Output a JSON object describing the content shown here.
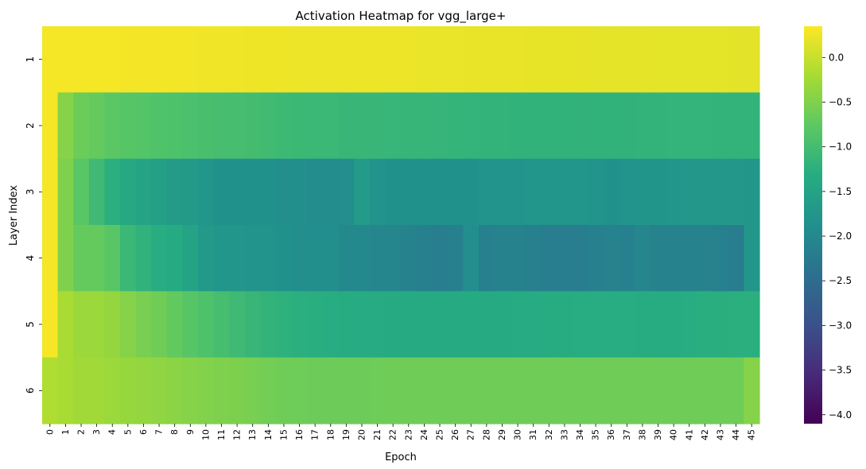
{
  "chart_data": {
    "type": "heatmap",
    "title": "Activation Heatmap for vgg_large+",
    "xlabel": "Epoch",
    "ylabel": "Layer Index",
    "x_categories": [
      "0",
      "1",
      "2",
      "3",
      "4",
      "5",
      "6",
      "7",
      "8",
      "9",
      "10",
      "11",
      "12",
      "13",
      "14",
      "15",
      "16",
      "17",
      "18",
      "19",
      "20",
      "21",
      "22",
      "23",
      "24",
      "25",
      "26",
      "27",
      "28",
      "29",
      "30",
      "31",
      "32",
      "33",
      "34",
      "35",
      "36",
      "37",
      "38",
      "39",
      "40",
      "41",
      "42",
      "43",
      "44",
      "45"
    ],
    "y_categories": [
      "1",
      "2",
      "3",
      "4",
      "5",
      "6"
    ],
    "colormap": "viridis",
    "vmin": -4.1,
    "vmax": 0.35,
    "colorbar_ticks": [
      "0.0",
      "−0.5",
      "−1.0",
      "−1.5",
      "−2.0",
      "−2.5",
      "−3.0",
      "−3.5",
      "−4.0"
    ],
    "colorbar_tick_values": [
      0.0,
      -0.5,
      -1.0,
      -1.5,
      -2.0,
      -2.5,
      -3.0,
      -3.5,
      -4.0
    ],
    "values": [
      [
        0.3,
        0.3,
        0.3,
        0.3,
        0.3,
        0.29,
        0.29,
        0.28,
        0.28,
        0.28,
        0.27,
        0.27,
        0.27,
        0.26,
        0.26,
        0.26,
        0.25,
        0.25,
        0.25,
        0.25,
        0.24,
        0.24,
        0.24,
        0.24,
        0.23,
        0.23,
        0.23,
        0.22,
        0.22,
        0.22,
        0.22,
        0.21,
        0.21,
        0.21,
        0.21,
        0.2,
        0.2,
        0.2,
        0.2,
        0.19,
        0.19,
        0.19,
        0.19,
        0.19,
        0.18,
        0.18
      ],
      [
        0.3,
        -0.45,
        -0.65,
        -0.7,
        -0.78,
        -0.82,
        -0.85,
        -0.88,
        -0.9,
        -0.92,
        -0.95,
        -0.97,
        -0.98,
        -1.0,
        -1.03,
        -1.06,
        -1.08,
        -1.1,
        -1.1,
        -1.12,
        -1.12,
        -1.12,
        -1.13,
        -1.14,
        -1.14,
        -1.15,
        -1.16,
        -1.17,
        -1.18,
        -1.18,
        -1.19,
        -1.19,
        -1.19,
        -1.19,
        -1.19,
        -1.19,
        -1.19,
        -1.19,
        -1.18,
        -1.18,
        -1.17,
        -1.17,
        -1.17,
        -1.18,
        -1.18,
        -1.18
      ],
      [
        0.3,
        -0.5,
        -0.8,
        -1.05,
        -1.25,
        -1.4,
        -1.5,
        -1.55,
        -1.65,
        -1.7,
        -1.75,
        -1.85,
        -1.85,
        -1.85,
        -1.85,
        -1.9,
        -1.9,
        -1.95,
        -1.95,
        -1.9,
        -1.65,
        -1.8,
        -1.85,
        -1.85,
        -1.85,
        -1.85,
        -1.85,
        -1.85,
        -1.8,
        -1.8,
        -1.8,
        -1.75,
        -1.75,
        -1.75,
        -1.75,
        -1.8,
        -1.85,
        -1.8,
        -1.78,
        -1.78,
        -1.75,
        -1.72,
        -1.72,
        -1.72,
        -1.72,
        -1.75
      ],
      [
        0.3,
        -0.5,
        -0.7,
        -0.7,
        -0.8,
        -1.1,
        -1.2,
        -1.3,
        -1.35,
        -1.5,
        -1.7,
        -1.75,
        -1.75,
        -1.8,
        -1.8,
        -1.85,
        -1.9,
        -1.9,
        -1.9,
        -2.0,
        -2.0,
        -2.05,
        -2.05,
        -2.1,
        -2.15,
        -2.2,
        -2.15,
        -1.9,
        -2.15,
        -2.1,
        -2.1,
        -2.15,
        -2.2,
        -2.2,
        -2.2,
        -2.15,
        -2.1,
        -2.15,
        -2.05,
        -2.1,
        -2.1,
        -2.1,
        -2.1,
        -2.15,
        -2.2,
        -1.75
      ],
      [
        0.3,
        -0.2,
        -0.3,
        -0.3,
        -0.35,
        -0.45,
        -0.55,
        -0.62,
        -0.72,
        -0.82,
        -0.9,
        -0.98,
        -1.05,
        -1.12,
        -1.18,
        -1.22,
        -1.25,
        -1.28,
        -1.3,
        -1.32,
        -1.33,
        -1.34,
        -1.35,
        -1.36,
        -1.36,
        -1.36,
        -1.36,
        -1.35,
        -1.35,
        -1.35,
        -1.34,
        -1.33,
        -1.32,
        -1.31,
        -1.3,
        -1.3,
        -1.3,
        -1.3,
        -1.31,
        -1.31,
        -1.32,
        -1.3,
        -1.28,
        -1.27,
        -1.25,
        -1.25
      ],
      [
        -0.15,
        -0.2,
        -0.25,
        -0.25,
        -0.3,
        -0.33,
        -0.35,
        -0.38,
        -0.42,
        -0.45,
        -0.48,
        -0.5,
        -0.52,
        -0.55,
        -0.6,
        -0.62,
        -0.63,
        -0.64,
        -0.64,
        -0.64,
        -0.64,
        -0.63,
        -0.62,
        -0.62,
        -0.62,
        -0.62,
        -0.62,
        -0.62,
        -0.62,
        -0.62,
        -0.62,
        -0.62,
        -0.62,
        -0.62,
        -0.62,
        -0.62,
        -0.62,
        -0.62,
        -0.62,
        -0.62,
        -0.62,
        -0.62,
        -0.62,
        -0.62,
        -0.62,
        -0.45
      ]
    ]
  }
}
